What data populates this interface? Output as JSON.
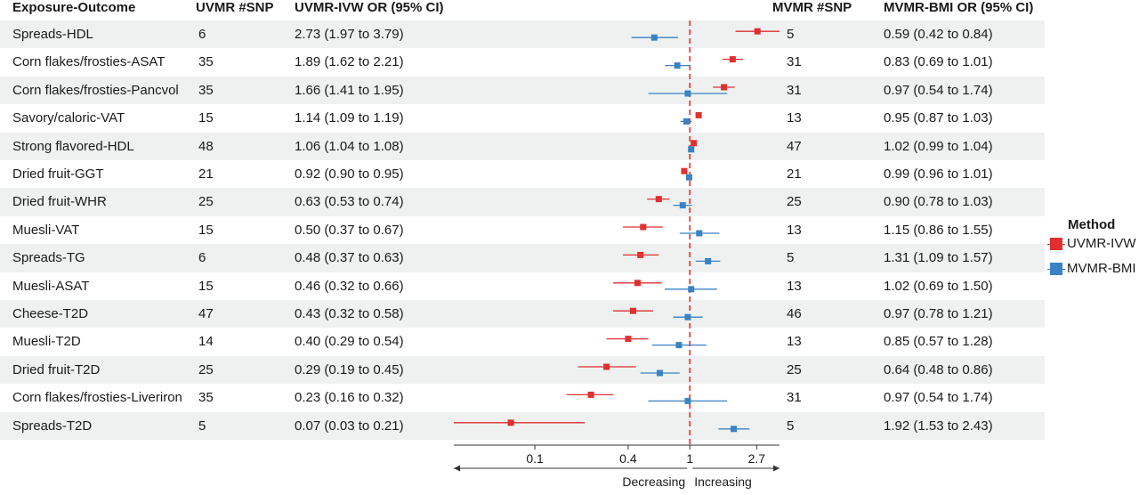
{
  "headers": {
    "exposure_outcome": "Exposure-Outcome",
    "uvmr_snp": "UVMR #SNP",
    "uvmr_or": "UVMR-IVW OR (95% CI)",
    "mvmr_snp": "MVMR #SNP",
    "mvmr_or": "MVMR-BMI OR (95% CI)"
  },
  "colors": {
    "uvmr": "#e03030",
    "mvmr": "#3b82c4",
    "refline": "#e03030",
    "shade": "#eef1ef"
  },
  "legend": {
    "title": "Method",
    "items": [
      {
        "label": "UVMR-IVW",
        "color": "#e03030"
      },
      {
        "label": "MVMR-BMI",
        "color": "#3b82c4"
      }
    ]
  },
  "axis": {
    "decreasing_label": "Decreasing",
    "increasing_label": "Increasing"
  },
  "chart_data": {
    "type": "scatter",
    "scale": "log",
    "xlim": [
      0.03,
      3.79
    ],
    "reference": 1,
    "ticks": [
      {
        "value": 0.1,
        "label": "0.1"
      },
      {
        "value": 0.4,
        "label": "0.4"
      },
      {
        "value": 1,
        "label": "1"
      },
      {
        "value": 2.7,
        "label": "2.7"
      }
    ],
    "series": [
      {
        "name": "UVMR-IVW"
      },
      {
        "name": "MVMR-BMI"
      }
    ],
    "rows": [
      {
        "label": "Spreads-HDL",
        "uvmr_snp": "6",
        "uvmr_text": "2.73 (1.97 to 3.79)",
        "uvmr": [
          2.73,
          1.97,
          3.79
        ],
        "mvmr_snp": "5",
        "mvmr_text": "0.59 (0.42 to 0.84)",
        "mvmr": [
          0.59,
          0.42,
          0.84
        ]
      },
      {
        "label": "Corn flakes/frosties-ASAT",
        "uvmr_snp": "35",
        "uvmr_text": "1.89 (1.62 to 2.21)",
        "uvmr": [
          1.89,
          1.62,
          2.21
        ],
        "mvmr_snp": "31",
        "mvmr_text": "0.83 (0.69 to 1.01)",
        "mvmr": [
          0.83,
          0.69,
          1.01
        ]
      },
      {
        "label": "Corn flakes/frosties-Pancvol",
        "uvmr_snp": "35",
        "uvmr_text": "1.66 (1.41 to 1.95)",
        "uvmr": [
          1.66,
          1.41,
          1.95
        ],
        "mvmr_snp": "31",
        "mvmr_text": "0.97 (0.54 to 1.74)",
        "mvmr": [
          0.97,
          0.54,
          1.74
        ]
      },
      {
        "label": "Savory/caloric-VAT",
        "uvmr_snp": "15",
        "uvmr_text": "1.14 (1.09 to 1.19)",
        "uvmr": [
          1.14,
          1.09,
          1.19
        ],
        "mvmr_snp": "13",
        "mvmr_text": "0.95 (0.87 to 1.03)",
        "mvmr": [
          0.95,
          0.87,
          1.03
        ]
      },
      {
        "label": "Strong flavored-HDL",
        "uvmr_snp": "48",
        "uvmr_text": "1.06 (1.04 to 1.08)",
        "uvmr": [
          1.06,
          1.04,
          1.08
        ],
        "mvmr_snp": "47",
        "mvmr_text": "1.02 (0.99 to 1.04)",
        "mvmr": [
          1.02,
          0.99,
          1.04
        ]
      },
      {
        "label": "Dried fruit-GGT",
        "uvmr_snp": "21",
        "uvmr_text": "0.92 (0.90 to 0.95)",
        "uvmr": [
          0.92,
          0.9,
          0.95
        ],
        "mvmr_snp": "21",
        "mvmr_text": "0.99 (0.96 to 1.01)",
        "mvmr": [
          0.99,
          0.96,
          1.01
        ]
      },
      {
        "label": "Dried fruit-WHR",
        "uvmr_snp": "25",
        "uvmr_text": "0.63 (0.53 to 0.74)",
        "uvmr": [
          0.63,
          0.53,
          0.74
        ],
        "mvmr_snp": "25",
        "mvmr_text": "0.90 (0.78 to 1.03)",
        "mvmr": [
          0.9,
          0.78,
          1.03
        ]
      },
      {
        "label": "Muesli-VAT",
        "uvmr_snp": "15",
        "uvmr_text": "0.50 (0.37 to 0.67)",
        "uvmr": [
          0.5,
          0.37,
          0.67
        ],
        "mvmr_snp": "13",
        "mvmr_text": "1.15 (0.86 to 1.55)",
        "mvmr": [
          1.15,
          0.86,
          1.55
        ]
      },
      {
        "label": "Spreads-TG",
        "uvmr_snp": "6",
        "uvmr_text": "0.48 (0.37 to 0.63)",
        "uvmr": [
          0.48,
          0.37,
          0.63
        ],
        "mvmr_snp": "5",
        "mvmr_text": "1.31 (1.09 to 1.57)",
        "mvmr": [
          1.31,
          1.09,
          1.57
        ]
      },
      {
        "label": "Muesli-ASAT",
        "uvmr_snp": "15",
        "uvmr_text": "0.46 (0.32 to 0.66)",
        "uvmr": [
          0.46,
          0.32,
          0.66
        ],
        "mvmr_snp": "13",
        "mvmr_text": "1.02 (0.69 to 1.50)",
        "mvmr": [
          1.02,
          0.69,
          1.5
        ]
      },
      {
        "label": "Cheese-T2D",
        "uvmr_snp": "47",
        "uvmr_text": "0.43 (0.32 to 0.58)",
        "uvmr": [
          0.43,
          0.32,
          0.58
        ],
        "mvmr_snp": "46",
        "mvmr_text": "0.97 (0.78 to 1.21)",
        "mvmr": [
          0.97,
          0.78,
          1.21
        ]
      },
      {
        "label": "Muesli-T2D",
        "uvmr_snp": "14",
        "uvmr_text": "0.40 (0.29 to 0.54)",
        "uvmr": [
          0.4,
          0.29,
          0.54
        ],
        "mvmr_snp": "13",
        "mvmr_text": "0.85 (0.57 to 1.28)",
        "mvmr": [
          0.85,
          0.57,
          1.28
        ]
      },
      {
        "label": "Dried fruit-T2D",
        "uvmr_snp": "25",
        "uvmr_text": "0.29 (0.19 to 0.45)",
        "uvmr": [
          0.29,
          0.19,
          0.45
        ],
        "mvmr_snp": "25",
        "mvmr_text": "0.64 (0.48 to 0.86)",
        "mvmr": [
          0.64,
          0.48,
          0.86
        ]
      },
      {
        "label": "Corn flakes/frosties-Liveriron",
        "uvmr_snp": "35",
        "uvmr_text": "0.23 (0.16 to 0.32)",
        "uvmr": [
          0.23,
          0.16,
          0.32
        ],
        "mvmr_snp": "31",
        "mvmr_text": "0.97 (0.54 to 1.74)",
        "mvmr": [
          0.97,
          0.54,
          1.74
        ]
      },
      {
        "label": "Spreads-T2D",
        "uvmr_snp": "5",
        "uvmr_text": "0.07 (0.03 to 0.21)",
        "uvmr": [
          0.07,
          0.03,
          0.21
        ],
        "mvmr_snp": "5",
        "mvmr_text": "1.92 (1.53 to 2.43)",
        "mvmr": [
          1.92,
          1.53,
          2.43
        ]
      }
    ]
  }
}
